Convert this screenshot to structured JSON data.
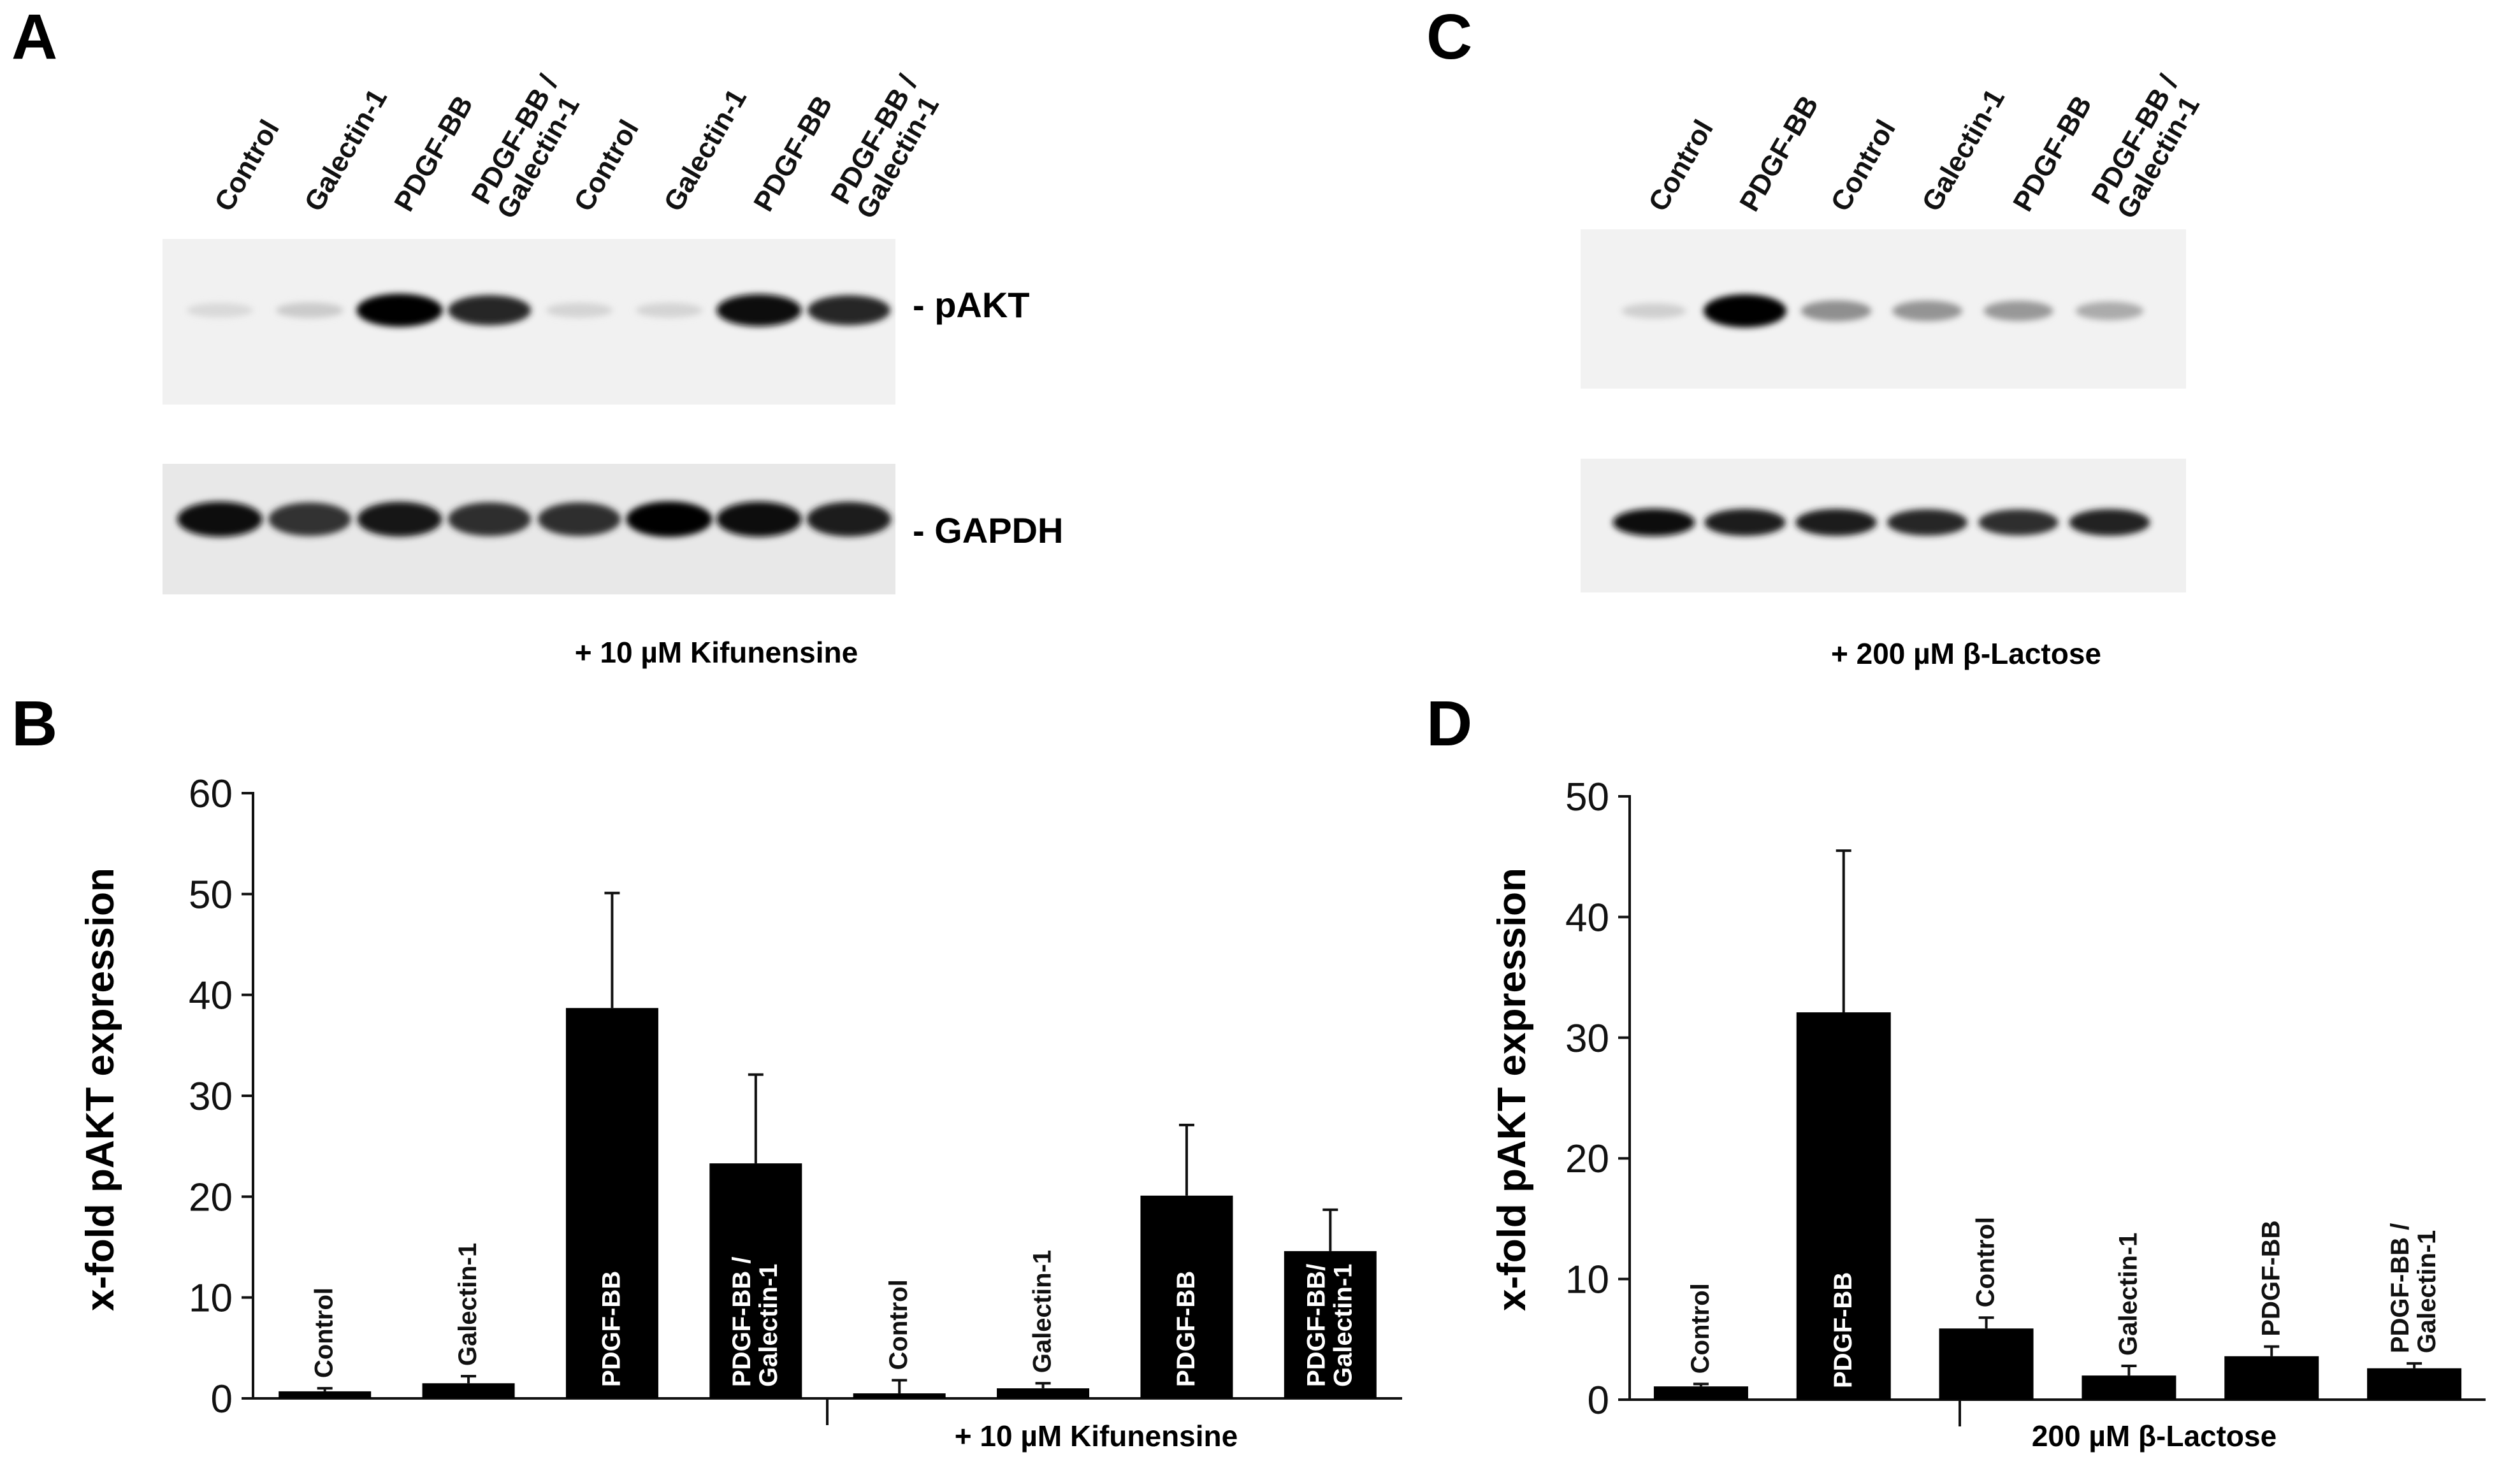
{
  "panels": {
    "A": "A",
    "B": "B",
    "C": "C",
    "D": "D"
  },
  "blot_a": {
    "lanes": [
      "Control",
      "Galectin-1",
      "PDGF-BB",
      "PDGF-BB /|Galectin-1",
      "Control",
      "Galectin-1",
      "PDGF-BB",
      "PDGF-BB /|Galectin-1"
    ],
    "pakt_label": "- pAKT",
    "gapdh_label": "- GAPDH",
    "pakt_intensity": [
      0.08,
      0.14,
      1.0,
      0.86,
      0.1,
      0.1,
      0.95,
      0.85
    ],
    "gapdh_intensity": [
      0.95,
      0.8,
      0.92,
      0.82,
      0.82,
      1.0,
      0.95,
      0.9
    ],
    "caption": "+ 10 µM Kifunensine"
  },
  "blot_c": {
    "lanes": [
      "Control",
      "PDGF-BB",
      "Control",
      "Galectin-1",
      "PDGF-BB",
      "PDGF-BB /|Galectin-1"
    ],
    "pakt_intensity": [
      0.12,
      1.0,
      0.4,
      0.38,
      0.36,
      0.28
    ],
    "gapdh_intensity": [
      0.95,
      0.9,
      0.9,
      0.85,
      0.82,
      0.88
    ],
    "caption": "+ 200 µM β-Lactose"
  },
  "chart_data": [
    {
      "type": "bar",
      "panel": "B",
      "ylabel": "x-fold pAKT expression",
      "ylim": [
        0,
        60
      ],
      "yticks": [
        0,
        10,
        20,
        30,
        40,
        50,
        60
      ],
      "categories": [
        "Control",
        "Galectin-1",
        "PDGF-BB",
        "PDGF-BB /|Galectin-1",
        "Control",
        "Galectin-1",
        "PDGF-BB",
        "PDGF-BB/|Galectin-1"
      ],
      "values": [
        0.7,
        1.5,
        38.7,
        23.3,
        0.5,
        1.0,
        20.1,
        14.6
      ],
      "errors": [
        0.3,
        0.7,
        11.4,
        8.8,
        1.3,
        0.5,
        7.0,
        4.1
      ],
      "group_label": "+ 10 µM Kifunensine"
    },
    {
      "type": "bar",
      "panel": "D",
      "ylabel": "x-fold pAKT expression",
      "ylim": [
        0,
        50
      ],
      "yticks": [
        0,
        10,
        20,
        30,
        40,
        50
      ],
      "categories": [
        "Control",
        "PDGF-BB",
        "Control",
        "Galectin-1",
        "PDGF-BB",
        "PDGF-BB /|Galectin-1"
      ],
      "values": [
        1.1,
        32.1,
        5.9,
        2.0,
        3.6,
        2.6
      ],
      "errors": [
        0.2,
        13.4,
        0.9,
        0.8,
        0.8,
        0.4
      ],
      "group_label": "200 µM β-Lactose"
    }
  ]
}
